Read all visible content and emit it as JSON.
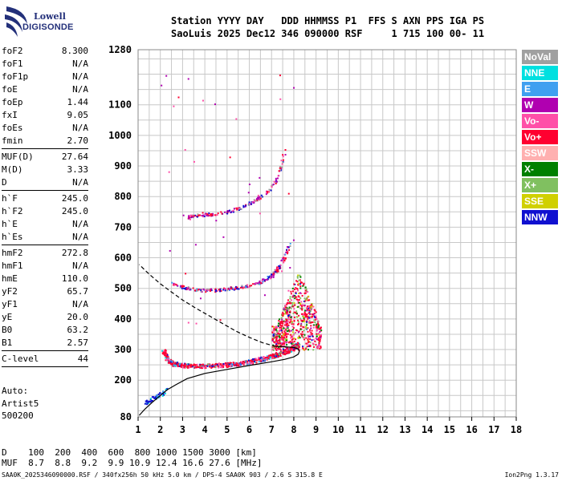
{
  "logo": {
    "line1": "Lowell",
    "line2": "DIGISONDE"
  },
  "header": {
    "line1": "Station YYYY DAY   DDD HHMMSS P1  FFS S AXN PPS IGA PS",
    "line2": "SaoLuis 2025 Dec12 346 090000 RSF     1 715 100 00- 11"
  },
  "params": [
    {
      "group": [
        {
          "label": "foF2",
          "value": "8.300"
        },
        {
          "label": "foF1",
          "value": "N/A"
        },
        {
          "label": "foF1p",
          "value": "N/A"
        },
        {
          "label": "foE",
          "value": "N/A"
        },
        {
          "label": "foEp",
          "value": "1.44"
        },
        {
          "label": "fxI",
          "value": "9.05"
        },
        {
          "label": "foEs",
          "value": "N/A"
        },
        {
          "label": "fmin",
          "value": "2.70"
        }
      ]
    },
    {
      "group": [
        {
          "label": "MUF(D)",
          "value": "27.64"
        },
        {
          "label": "M(D)",
          "value": "3.33"
        },
        {
          "label": "D",
          "value": "N/A"
        }
      ]
    },
    {
      "group": [
        {
          "label": "h`F",
          "value": "245.0"
        },
        {
          "label": "h`F2",
          "value": "245.0"
        },
        {
          "label": "h`E",
          "value": "N/A"
        },
        {
          "label": "h`Es",
          "value": "N/A"
        }
      ]
    },
    {
      "group": [
        {
          "label": "hmF2",
          "value": "272.8"
        },
        {
          "label": "hmF1",
          "value": "N/A"
        },
        {
          "label": "hmE",
          "value": "110.0"
        },
        {
          "label": "yF2",
          "value": "65.7"
        },
        {
          "label": "yF1",
          "value": "N/A"
        },
        {
          "label": "yE",
          "value": "20.0"
        },
        {
          "label": "B0",
          "value": "63.2"
        },
        {
          "label": "B1",
          "value": "2.57"
        }
      ]
    },
    {
      "group": [
        {
          "label": "C-level",
          "value": "44"
        }
      ]
    }
  ],
  "auto": {
    "line1": "Auto:",
    "line2": "Artist5",
    "line3": "500200"
  },
  "legend": [
    {
      "label": "NoVal",
      "color": "#a0a0a0",
      "text_color": "#ffffff"
    },
    {
      "label": "NNE",
      "color": "#00e0e0",
      "text_color": "#ffffff"
    },
    {
      "label": "E",
      "color": "#3fa0f0",
      "text_color": "#ffffff"
    },
    {
      "label": "W",
      "color": "#b000b0",
      "text_color": "#ffffff"
    },
    {
      "label": "Vo-",
      "color": "#ff4fa8",
      "text_color": "#ffffff"
    },
    {
      "label": "Vo+",
      "color": "#ff0030",
      "text_color": "#ffffff"
    },
    {
      "label": "SSW",
      "color": "#ffb0b0",
      "text_color": "#ffffff"
    },
    {
      "label": "X-",
      "color": "#008000",
      "text_color": "#ffffff"
    },
    {
      "label": "X+",
      "color": "#80c060",
      "text_color": "#ffffff"
    },
    {
      "label": "SSE",
      "color": "#d0d000",
      "text_color": "#ffffff"
    },
    {
      "label": "NNW",
      "color": "#1010d0",
      "text_color": "#ffffff"
    }
  ],
  "muf_table": {
    "line1": "D    100  200  400  600  800 1000 1500 3000 [km]",
    "line2": "MUF  8.7  8.8  9.2  9.9 10.9 12.4 16.6 27.6 [MHz]"
  },
  "footer": {
    "left": "SAA0K_2025346090000.RSF / 340fx256h 50 kHz 5.0 km / DPS-4 SAA0K 903 / 2.6 S 315.8 E",
    "right": "Ion2Png 1.3.17"
  },
  "chart_data": {
    "type": "scatter",
    "x_ticks": [
      "1",
      "2",
      "3",
      "4",
      "5",
      "6",
      "7",
      "8",
      "9",
      "10",
      "11",
      "12",
      "13",
      "14",
      "15",
      "16",
      "17",
      "18"
    ],
    "y_ticks": [
      "80",
      "200",
      "300",
      "400",
      "500",
      "600",
      "700",
      "800",
      "900",
      "1000",
      "1100",
      "1280"
    ],
    "xlim": [
      1,
      18
    ],
    "ylim": [
      80,
      1280
    ],
    "grid": true,
    "profile_curve": {
      "x": [
        1.05,
        1.3,
        1.6,
        2.0,
        2.3,
        2.7,
        3.2,
        4.0,
        5.0,
        6.0,
        7.0,
        7.6,
        8.0,
        8.2,
        8.25,
        8.2,
        8.0,
        7.6,
        7.2
      ],
      "y": [
        85,
        105,
        125,
        150,
        168,
        185,
        205,
        222,
        235,
        248,
        260,
        268,
        276,
        285,
        295,
        302,
        307,
        309,
        310
      ]
    },
    "dashed_curve": {
      "x": [
        7.2,
        6.6,
        6.0,
        5.4,
        4.8,
        4.2,
        3.6,
        3.0,
        2.5,
        2.0,
        1.6,
        1.3,
        1.05
      ],
      "y": [
        310,
        322,
        340,
        360,
        385,
        410,
        435,
        462,
        488,
        515,
        540,
        560,
        578
      ]
    },
    "low_trace": {
      "x": [
        1.3,
        1.5,
        1.7,
        1.9,
        2.1,
        2.3
      ],
      "y": [
        125,
        135,
        145,
        150,
        160,
        170
      ]
    },
    "trace_1F": {
      "x": [
        2.1,
        2.3,
        2.6,
        3.0,
        3.5,
        4.0,
        4.5,
        5.0,
        5.5,
        6.0,
        6.5,
        7.0,
        7.3,
        7.6,
        7.8,
        8.0,
        8.2
      ],
      "y": [
        300,
        270,
        255,
        250,
        248,
        248,
        250,
        252,
        256,
        262,
        270,
        280,
        287,
        295,
        300,
        310,
        320
      ]
    },
    "trace_2F": {
      "x": [
        2.5,
        3.0,
        3.5,
        4.0,
        4.5,
        5.0,
        5.5,
        6.0,
        6.4,
        6.8,
        7.0,
        7.2,
        7.4,
        7.6,
        7.8
      ],
      "y": [
        520,
        505,
        498,
        495,
        496,
        500,
        505,
        512,
        520,
        535,
        545,
        560,
        580,
        610,
        650
      ]
    },
    "trace_3F": {
      "x": [
        3.2,
        3.5,
        4.0,
        4.5,
        5.0,
        5.5,
        6.0,
        6.5,
        7.0,
        7.2,
        7.4,
        7.6
      ],
      "y": [
        735,
        740,
        742,
        745,
        752,
        762,
        780,
        800,
        830,
        860,
        900,
        960
      ]
    },
    "spread_F_region": {
      "x": [
        7.0,
        9.2
      ],
      "y": [
        300,
        560
      ]
    }
  }
}
